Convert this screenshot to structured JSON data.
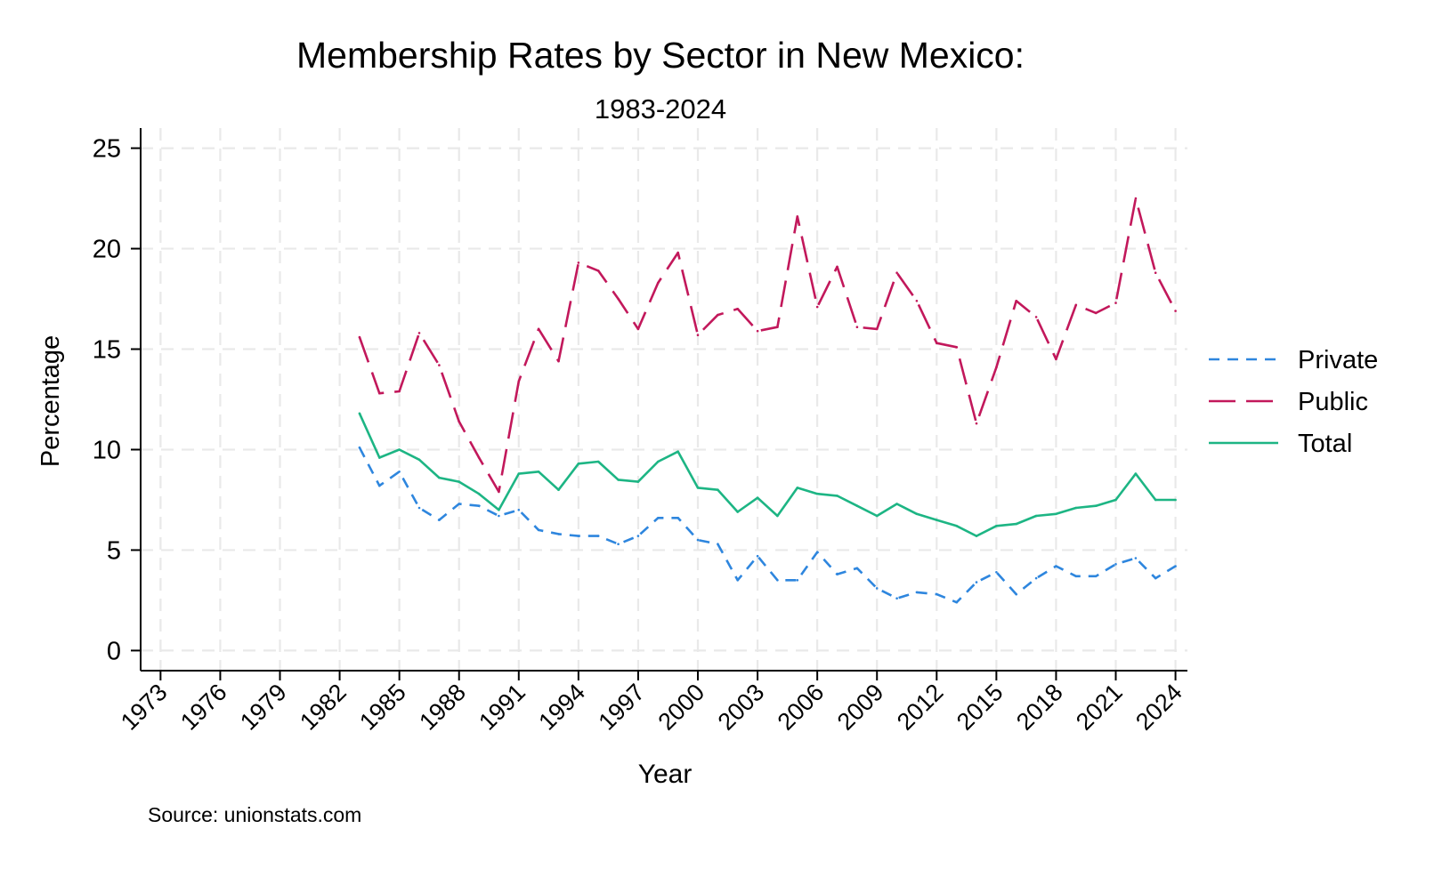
{
  "chart_data": {
    "type": "line",
    "title": "Membership Rates by Sector in New Mexico:",
    "subtitle": "1983-2024",
    "xlabel": "Year",
    "ylabel": "Percentage",
    "source": "Source: unionstats.com",
    "xlim": [
      1972,
      2024.6
    ],
    "ylim": [
      -1,
      26
    ],
    "x_ticks": [
      1973,
      1976,
      1979,
      1982,
      1985,
      1988,
      1991,
      1994,
      1997,
      2000,
      2003,
      2006,
      2009,
      2012,
      2015,
      2018,
      2021,
      2024
    ],
    "y_ticks": [
      0,
      5,
      10,
      15,
      20,
      25
    ],
    "grid": true,
    "legend_position": "right",
    "x": [
      1983,
      1984,
      1985,
      1986,
      1987,
      1988,
      1989,
      1990,
      1991,
      1992,
      1993,
      1994,
      1995,
      1996,
      1997,
      1998,
      1999,
      2000,
      2001,
      2002,
      2003,
      2004,
      2005,
      2006,
      2007,
      2008,
      2009,
      2010,
      2011,
      2012,
      2013,
      2014,
      2015,
      2016,
      2017,
      2018,
      2019,
      2020,
      2021,
      2022,
      2023,
      2024
    ],
    "series": [
      {
        "name": "Private",
        "color": "#2e86de",
        "dash": "short-dash",
        "values": [
          10.1,
          8.2,
          8.9,
          7.1,
          6.5,
          7.3,
          7.2,
          6.7,
          7.0,
          6.0,
          5.8,
          5.7,
          5.7,
          5.3,
          5.7,
          6.6,
          6.6,
          5.5,
          5.3,
          3.5,
          4.7,
          3.5,
          3.5,
          4.9,
          3.8,
          4.1,
          3.1,
          2.6,
          2.9,
          2.8,
          2.4,
          3.4,
          3.9,
          2.8,
          3.6,
          4.2,
          3.7,
          3.7,
          4.3,
          4.6,
          3.6,
          4.2
        ]
      },
      {
        "name": "Public",
        "color": "#c2185b",
        "dash": "long-dash",
        "values": [
          15.6,
          12.8,
          12.9,
          15.8,
          14.2,
          11.4,
          9.6,
          7.9,
          13.4,
          16.0,
          14.4,
          19.3,
          18.9,
          17.5,
          16.0,
          18.3,
          19.8,
          15.7,
          16.7,
          17.0,
          15.9,
          16.1,
          21.6,
          17.1,
          19.1,
          16.1,
          16.0,
          18.8,
          17.4,
          15.3,
          15.1,
          11.3,
          14.1,
          17.4,
          16.6,
          14.5,
          17.2,
          16.8,
          17.3,
          22.5,
          18.8,
          16.9
        ]
      },
      {
        "name": "Total",
        "color": "#1db584",
        "dash": "solid",
        "values": [
          11.8,
          9.6,
          10.0,
          9.5,
          8.6,
          8.4,
          7.8,
          7.0,
          8.8,
          8.9,
          8.0,
          9.3,
          9.4,
          8.5,
          8.4,
          9.4,
          9.9,
          8.1,
          8.0,
          6.9,
          7.6,
          6.7,
          8.1,
          7.8,
          7.7,
          7.2,
          6.7,
          7.3,
          6.8,
          6.5,
          6.2,
          5.7,
          6.2,
          6.3,
          6.7,
          6.8,
          7.1,
          7.2,
          7.5,
          8.8,
          7.5,
          7.5
        ]
      }
    ]
  }
}
